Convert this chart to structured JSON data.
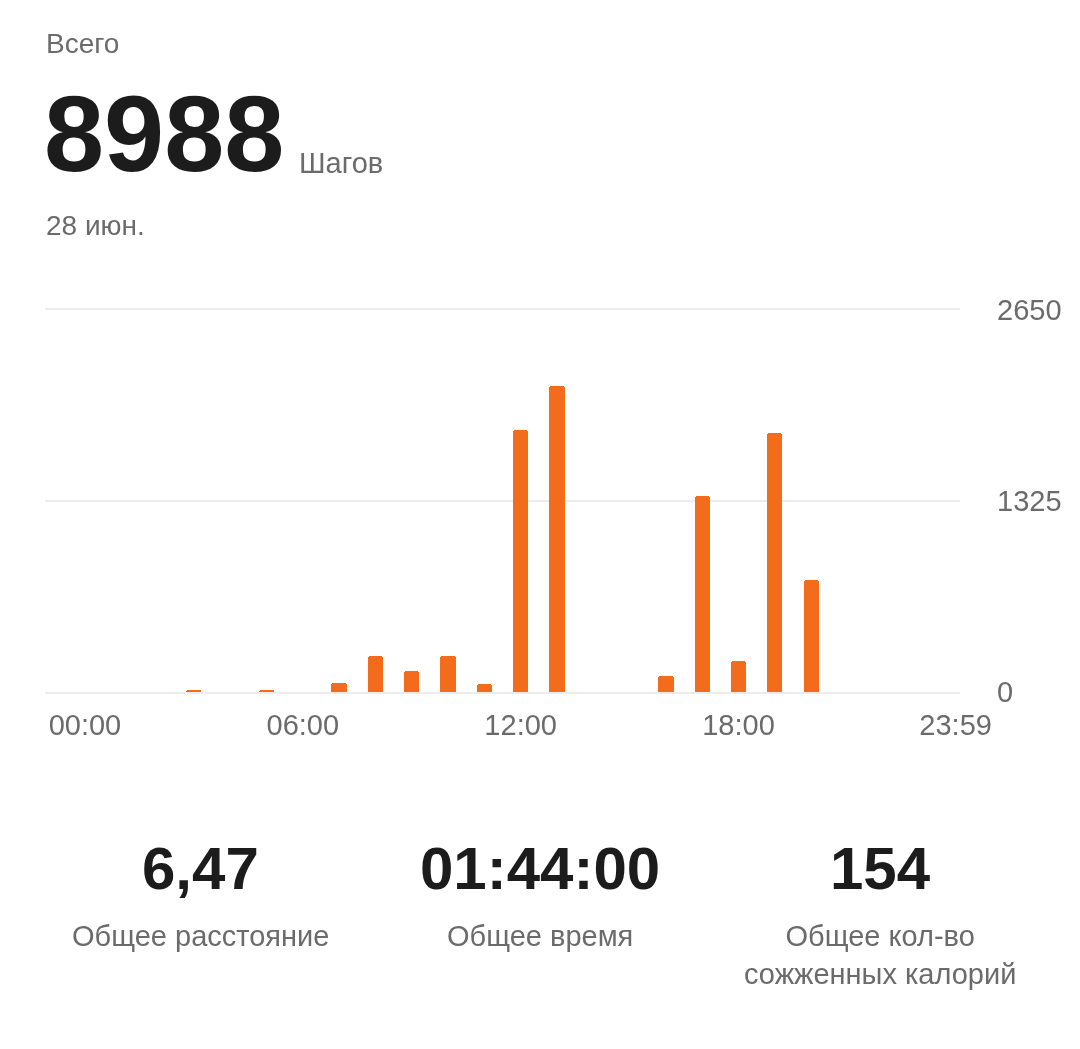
{
  "chart_data": {
    "type": "bar",
    "title": "Всего",
    "subtitle": "28 июн.",
    "annotations": [
      "8988",
      "Шагов",
      "6,47",
      "Общее расстояние",
      "01:44:00",
      "Общее время",
      "154",
      "Общее кол-во сожженных калорий"
    ],
    "x": [
      3,
      5,
      7,
      8,
      9,
      10,
      11,
      12,
      13,
      16,
      17,
      18,
      19,
      20
    ],
    "values": [
      14,
      14,
      65,
      250,
      145,
      250,
      55,
      1815,
      2120,
      110,
      1360,
      215,
      1800,
      780
    ],
    "color": "#f36c1c",
    "xlim": [
      -1.1,
      24.1
    ],
    "xticks": [
      {
        "value": 0,
        "label": "00:00"
      },
      {
        "value": 6,
        "label": "06:00"
      },
      {
        "value": 12,
        "label": "12:00"
      },
      {
        "value": 18,
        "label": "18:00"
      },
      {
        "value": 23.98,
        "label": "23:59"
      }
    ],
    "ylim": [
      0,
      2650
    ],
    "yticks": [
      0,
      1325,
      2650
    ],
    "grid": "y"
  }
}
